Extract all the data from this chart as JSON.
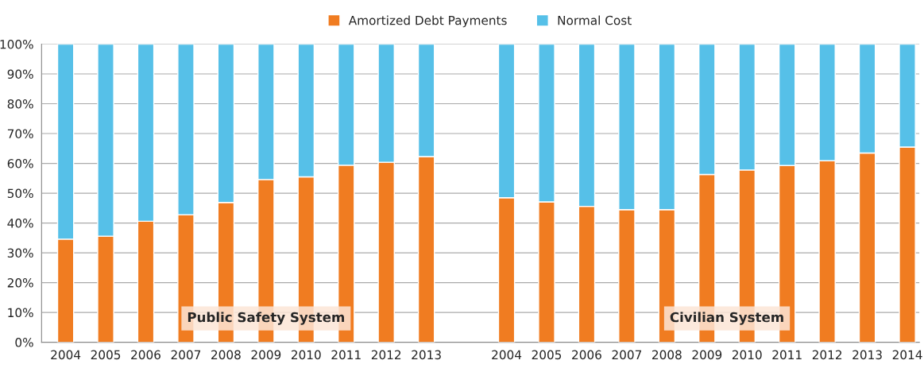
{
  "chart_data": {
    "type": "bar",
    "stacked": true,
    "categories": [
      "2004",
      "2005",
      "2006",
      "2007",
      "2008",
      "2009",
      "2010",
      "2011",
      "2012",
      "2013",
      null,
      "2004",
      "2005",
      "2006",
      "2007",
      "2008",
      "2009",
      "2010",
      "2011",
      "2012",
      "2013",
      "2014"
    ],
    "series": [
      {
        "name": "Amortized Debt Payments",
        "color": "#f07c21",
        "values": [
          34.6,
          35.6,
          40.6,
          42.8,
          46.9,
          54.6,
          55.5,
          59.4,
          60.4,
          62.3,
          null,
          48.5,
          47.1,
          45.6,
          44.5,
          44.5,
          56.3,
          57.8,
          59.3,
          60.9,
          63.5,
          65.5
        ]
      },
      {
        "name": "Normal Cost",
        "color": "#56c0e8",
        "values": [
          65.4,
          64.4,
          59.4,
          57.2,
          53.1,
          45.4,
          44.5,
          40.6,
          39.6,
          37.7,
          null,
          51.5,
          52.9,
          54.4,
          55.5,
          55.5,
          43.7,
          42.2,
          40.7,
          39.1,
          36.5,
          34.5
        ]
      }
    ],
    "ylim": [
      0,
      100
    ],
    "yticks": [
      {
        "value": 0,
        "label": "0%"
      },
      {
        "value": 10,
        "label": "10%"
      },
      {
        "value": 20,
        "label": "20%"
      },
      {
        "value": 30,
        "label": "30%"
      },
      {
        "value": 40,
        "label": "40%"
      },
      {
        "value": 50,
        "label": "50%"
      },
      {
        "value": 60,
        "label": "60%"
      },
      {
        "value": 70,
        "label": "70%"
      },
      {
        "value": 80,
        "label": "80%"
      },
      {
        "value": 90,
        "label": "90%"
      },
      {
        "value": 100,
        "label": "100%"
      }
    ],
    "grid": "y",
    "legend": "top",
    "annotations": [
      "Public Safety System",
      "Civilian System"
    ]
  }
}
